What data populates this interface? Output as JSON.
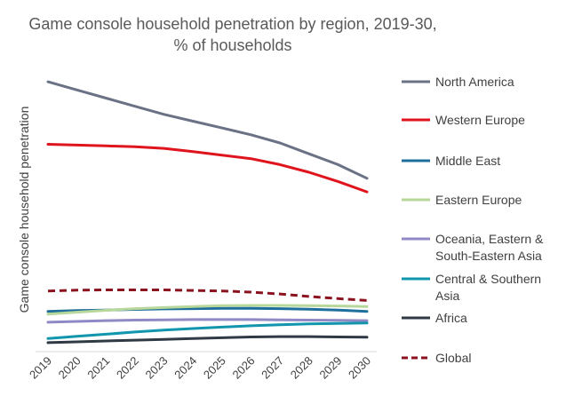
{
  "chart_data": {
    "type": "line",
    "title": "Game console household penetration by region, 2019-30,",
    "subtitle": "% of households",
    "xlabel": "",
    "ylabel": "Game console household penetration",
    "ylim": [
      0,
      100
    ],
    "grid": false,
    "legend_position": "right",
    "x": [
      "2019",
      "2020",
      "2021",
      "2022",
      "2023",
      "2024",
      "2025",
      "2026",
      "2027",
      "2028",
      "2029",
      "2030"
    ],
    "series": [
      {
        "name": "North America",
        "color": "#6b7286",
        "dash": "solid",
        "values": [
          98,
          95,
          92,
          89,
          86,
          83.5,
          81,
          78.5,
          75.5,
          71.5,
          67.5,
          62.5
        ]
      },
      {
        "name": "Western Europe",
        "color": "#e0141d",
        "dash": "solid",
        "values": [
          75,
          74.7,
          74.4,
          74.1,
          73.5,
          72.3,
          71,
          69.7,
          67.5,
          64.7,
          61.3,
          57.5
        ]
      },
      {
        "name": "Middle East",
        "color": "#1f6f9d",
        "dash": "solid",
        "values": [
          13.5,
          13.8,
          14,
          14.2,
          14.4,
          14.5,
          14.6,
          14.6,
          14.5,
          14.3,
          14,
          13.5
        ]
      },
      {
        "name": "Eastern Europe",
        "color": "#b7d89a",
        "dash": "solid",
        "values": [
          12.5,
          13.2,
          13.9,
          14.5,
          14.9,
          15.3,
          15.6,
          15.7,
          15.7,
          15.6,
          15.5,
          15.3
        ]
      },
      {
        "name": "Oceania, Eastern & South-Eastern Asia",
        "color": "#8f8ac6",
        "dash": "solid",
        "values": [
          9.5,
          9.8,
          10.1,
          10.3,
          10.4,
          10.5,
          10.5,
          10.5,
          10.4,
          10.3,
          10.2,
          10.1
        ]
      },
      {
        "name": "Central & Southern Asia",
        "color": "#1296ad",
        "dash": "solid",
        "values": [
          3.5,
          4.3,
          5.1,
          5.9,
          6.6,
          7.2,
          7.7,
          8.2,
          8.6,
          8.9,
          9.1,
          9.2
        ]
      },
      {
        "name": "Africa",
        "color": "#2f3a44",
        "dash": "solid",
        "values": [
          2,
          2.3,
          2.6,
          2.9,
          3.2,
          3.5,
          3.8,
          4.1,
          4.2,
          4.2,
          4.1,
          4
        ]
      },
      {
        "name": "Global",
        "color": "#8b1320",
        "dash": "dashed",
        "values": [
          21,
          21.3,
          21.4,
          21.4,
          21.4,
          21.2,
          21,
          20.6,
          19.9,
          19,
          18.2,
          17.5
        ]
      }
    ]
  }
}
